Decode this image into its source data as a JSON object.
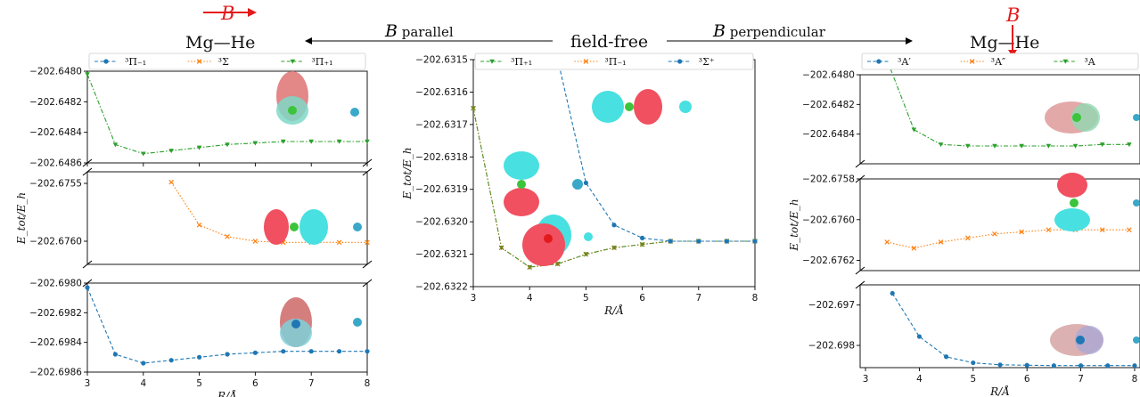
{
  "colors": {
    "blue": "#1f77b4",
    "orange": "#ff7f0e",
    "green": "#2ca02c",
    "olive": "#8c7a1a",
    "red": "#e31a1c",
    "cyan": "#48e0e0",
    "pink": "#f05060"
  },
  "header": {
    "left_molecule": "Mg—He",
    "right_molecule": "Mg—He",
    "center": "field-free",
    "left_arrow_b": "B",
    "left_arrow_label": " parallel",
    "right_arrow_b": "B",
    "right_arrow_label": " perpendicular",
    "field_symbol": "B"
  },
  "chart_data": [
    {
      "type": "line",
      "name": "B parallel, top",
      "legend": [
        "³Π₋₁",
        "³Σ",
        "³Π₊₁"
      ],
      "xlim": [
        3,
        8
      ],
      "ylim": [
        -202.6486,
        -202.648
      ],
      "yticks": [
        "−202.6480",
        "−202.6482",
        "−202.6484",
        "−202.6486"
      ],
      "series": [
        {
          "name": "³Π₊₁",
          "color": "green",
          "x": [
            3,
            3.5,
            4,
            4.5,
            5,
            5.5,
            6,
            6.5,
            7,
            7.5,
            8
          ],
          "y": [
            -202.64802,
            -202.64848,
            -202.64854,
            -202.64852,
            -202.6485,
            -202.64848,
            -202.64847,
            -202.64846,
            -202.64846,
            -202.64846,
            -202.64846
          ]
        }
      ]
    },
    {
      "type": "line",
      "name": "B parallel, middle",
      "ylabel": "E_tot/E_h",
      "xlim": [
        3,
        8
      ],
      "ylim": [
        -202.6762,
        -202.6754
      ],
      "yticks": [
        "−202.6755",
        "−202.6760"
      ],
      "series": [
        {
          "name": "³Σ",
          "color": "orange",
          "x": [
            4.5,
            5,
            5.5,
            6,
            6.5,
            7,
            7.5,
            8
          ],
          "y": [
            -202.67549,
            -202.67586,
            -202.67596,
            -202.676,
            -202.67601,
            -202.67601,
            -202.67601,
            -202.67601
          ]
        }
      ]
    },
    {
      "type": "line",
      "name": "B parallel, bottom",
      "xlabel": "R/Å",
      "xlim": [
        3,
        8
      ],
      "ylim": [
        -202.6986,
        -202.698
      ],
      "xticks": [
        "3",
        "4",
        "5",
        "6",
        "7",
        "8"
      ],
      "yticks": [
        "−202.6980",
        "−202.6982",
        "−202.6984",
        "−202.6986"
      ],
      "series": [
        {
          "name": "³Π₋₁",
          "color": "blue",
          "x": [
            3,
            3.5,
            4,
            4.5,
            5,
            5.5,
            6,
            6.5,
            7,
            7.5,
            8
          ],
          "y": [
            -202.69803,
            -202.69848,
            -202.69854,
            -202.69852,
            -202.6985,
            -202.69848,
            -202.69847,
            -202.69846,
            -202.69846,
            -202.69846,
            -202.69846
          ]
        }
      ]
    },
    {
      "type": "line",
      "name": "field-free",
      "legend": [
        "³Π₊₁",
        "³Π₋₁",
        "³Σ⁺"
      ],
      "xlabel": "R/Å",
      "ylabel": "E_tot/E_h",
      "xlim": [
        3,
        8
      ],
      "ylim": [
        -202.6322,
        -202.6315
      ],
      "xticks": [
        "3",
        "4",
        "5",
        "6",
        "7",
        "8"
      ],
      "yticks": [
        "−202.6315",
        "−202.6316",
        "−202.6317",
        "−202.6318",
        "−202.6319",
        "−202.6320",
        "−202.6321",
        "−202.6322"
      ],
      "series": [
        {
          "name": "³Π₊₁",
          "color": "green",
          "x": [
            3,
            3.5,
            4,
            4.5,
            5,
            5.5,
            6,
            6.5,
            7,
            7.5,
            8
          ],
          "y": [
            -202.63165,
            -202.63208,
            -202.63214,
            -202.63213,
            -202.6321,
            -202.63208,
            -202.63207,
            -202.63206,
            -202.63206,
            -202.63206,
            -202.63206
          ]
        },
        {
          "name": "³Π₋₁",
          "color": "orange",
          "x": [
            3,
            3.5,
            4,
            4.5,
            5,
            5.5,
            6,
            6.5,
            7,
            7.5,
            8
          ],
          "y": [
            -202.63165,
            -202.63208,
            -202.63214,
            -202.63213,
            -202.6321,
            -202.63208,
            -202.63207,
            -202.63206,
            -202.63206,
            -202.63206,
            -202.63206
          ]
        },
        {
          "name": "³Σ⁺",
          "color": "blue",
          "x": [
            4.5,
            5,
            5.5,
            6,
            6.5,
            7,
            7.5,
            8
          ],
          "y": [
            -202.6315,
            -202.63188,
            -202.63201,
            -202.63205,
            -202.63206,
            -202.63206,
            -202.63206,
            -202.63206
          ]
        }
      ]
    },
    {
      "type": "line",
      "name": "B perpendicular, top",
      "legend": [
        "³A′",
        "³A″",
        "³A"
      ],
      "xlim": [
        3,
        8.2
      ],
      "ylim": [
        -202.6486,
        -202.648
      ],
      "yticks": [
        "−202.6480",
        "−202.6482",
        "−202.6484"
      ],
      "series": [
        {
          "name": "³A",
          "color": "green",
          "x": [
            3.5,
            4,
            4.5,
            5,
            5.5,
            6,
            6.5,
            7,
            7.5,
            8
          ],
          "y": [
            -202.6479,
            -202.64837,
            -202.64847,
            -202.64848,
            -202.64848,
            -202.64848,
            -202.64848,
            -202.64848,
            -202.64847,
            -202.64847
          ]
        }
      ]
    },
    {
      "type": "line",
      "name": "B perpendicular, middle",
      "ylabel": "E_tot/E_h",
      "xlim": [
        3,
        8.2
      ],
      "ylim": [
        -202.67625,
        -202.6758
      ],
      "yticks": [
        "−202.6758",
        "−202.6760",
        "−202.6762"
      ],
      "series": [
        {
          "name": "³A″",
          "color": "orange",
          "x": [
            3.5,
            4,
            4.5,
            5,
            5.5,
            6,
            6.5,
            7,
            7.5,
            8
          ],
          "y": [
            -202.67611,
            -202.67614,
            -202.67611,
            -202.67609,
            -202.67607,
            -202.67606,
            -202.67605,
            -202.67605,
            -202.67605,
            -202.67605
          ]
        }
      ]
    },
    {
      "type": "line",
      "name": "B perpendicular, bottom",
      "xlabel": "R/Å",
      "xlim": [
        2.9,
        8.1
      ],
      "ylim": [
        -202.69855,
        -202.6965
      ],
      "xticks": [
        "3",
        "4",
        "5",
        "6",
        "7",
        "8"
      ],
      "yticks": [
        "−202.697",
        "−202.698"
      ],
      "series": [
        {
          "name": "³A′",
          "color": "blue",
          "x": [
            3.5,
            4,
            4.5,
            5,
            5.5,
            6,
            6.5,
            7,
            7.5,
            8
          ],
          "y": [
            -202.69671,
            -202.69778,
            -202.69828,
            -202.69843,
            -202.69848,
            -202.69849,
            -202.6985,
            -202.6985,
            -202.6985,
            -202.6985
          ]
        }
      ]
    }
  ]
}
